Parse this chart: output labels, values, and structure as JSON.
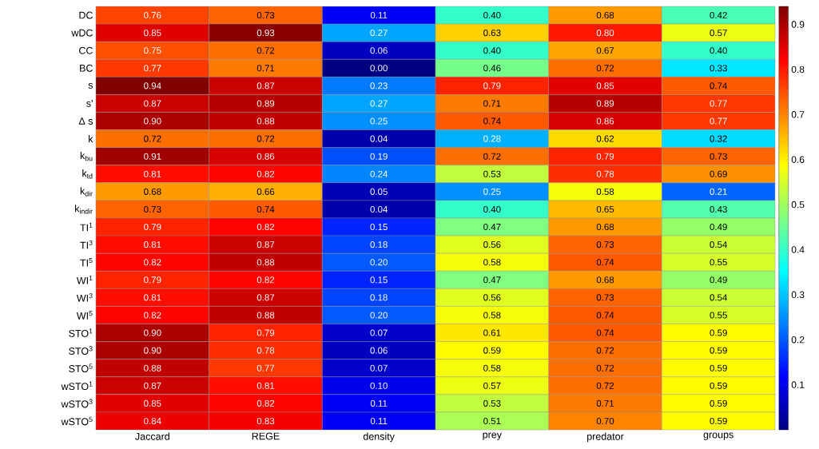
{
  "chart_data": {
    "type": "heatmap",
    "categories": [
      "Jaccard",
      "REGE",
      "density",
      "prey",
      "predator",
      "groups"
    ],
    "y_categories": [
      "DC",
      "wDC",
      "CC",
      "BC",
      "s",
      "s'",
      "Δ s",
      "k",
      "k$_{bu}$",
      "k$_{td}$",
      "k$_{dir}$",
      "k$_{indir}$",
      "TI$^{1}$",
      "TI$^{3}$",
      "TI$^{5}$",
      "WI$^{1}$",
      "WI$^{3}$",
      "WI$^{5}$",
      "STO$^{1}$",
      "STO$^{3}$",
      "STO$^{5}$",
      "wSTO$^{1}$",
      "wSTO$^{3}$",
      "wSTO$^{5}$"
    ],
    "cells": [
      [
        0.76,
        0.73,
        0.11,
        0.4,
        0.68,
        0.42
      ],
      [
        0.85,
        0.93,
        0.27,
        0.63,
        0.8,
        0.57
      ],
      [
        0.75,
        0.72,
        0.06,
        0.4,
        0.67,
        0.4
      ],
      [
        0.77,
        0.71,
        0.0,
        0.46,
        0.72,
        0.33
      ],
      [
        0.94,
        0.87,
        0.23,
        0.79,
        0.85,
        0.74
      ],
      [
        0.87,
        0.89,
        0.27,
        0.71,
        0.89,
        0.77
      ],
      [
        0.9,
        0.88,
        0.25,
        0.74,
        0.86,
        0.77
      ],
      [
        0.72,
        0.72,
        0.04,
        0.28,
        0.62,
        0.32
      ],
      [
        0.91,
        0.86,
        0.19,
        0.72,
        0.79,
        0.73
      ],
      [
        0.81,
        0.82,
        0.24,
        0.53,
        0.78,
        0.69
      ],
      [
        0.68,
        0.66,
        0.05,
        0.25,
        0.58,
        0.21
      ],
      [
        0.73,
        0.74,
        0.04,
        0.4,
        0.65,
        0.43
      ],
      [
        0.79,
        0.82,
        0.15,
        0.47,
        0.68,
        0.49
      ],
      [
        0.81,
        0.87,
        0.18,
        0.56,
        0.73,
        0.54
      ],
      [
        0.82,
        0.88,
        0.2,
        0.58,
        0.74,
        0.55
      ],
      [
        0.79,
        0.82,
        0.15,
        0.47,
        0.68,
        0.49
      ],
      [
        0.81,
        0.87,
        0.18,
        0.56,
        0.73,
        0.54
      ],
      [
        0.82,
        0.88,
        0.2,
        0.58,
        0.74,
        0.55
      ],
      [
        0.9,
        0.79,
        0.07,
        0.61,
        0.74,
        0.59
      ],
      [
        0.9,
        0.78,
        0.06,
        0.59,
        0.72,
        0.59
      ],
      [
        0.88,
        0.77,
        0.07,
        0.58,
        0.72,
        0.59
      ],
      [
        0.87,
        0.81,
        0.1,
        0.57,
        0.72,
        0.59
      ],
      [
        0.85,
        0.82,
        0.11,
        0.53,
        0.71,
        0.59
      ],
      [
        0.84,
        0.83,
        0.11,
        0.51,
        0.7,
        0.59
      ]
    ],
    "clim": [
      0,
      0.94
    ],
    "cticks": [
      0.1,
      0.2,
      0.3,
      0.4,
      0.5,
      0.6,
      0.7,
      0.8,
      0.9
    ],
    "cell_labels": [
      [
        "0.76",
        "0.73",
        "0.11",
        "0.40",
        "0.68",
        "0.42"
      ],
      [
        "0.85",
        "0.93",
        "0.27",
        "0.63",
        "0.80",
        "0.57"
      ],
      [
        "0.75",
        "0.72",
        "0.06",
        "0.40",
        "0.67",
        "0.40"
      ],
      [
        "0.77",
        "0.71",
        "0.00",
        "0.46",
        "0.72",
        "0.33"
      ],
      [
        "0.94",
        "0.87",
        "0.23",
        "0.79",
        "0.85",
        "0.74"
      ],
      [
        "0.87",
        "0.89",
        "0.27",
        "0.71",
        "0.89",
        "0.77"
      ],
      [
        "0.90",
        "0.88",
        "0.25",
        "0.74",
        "0.86",
        "0.77"
      ],
      [
        "0.72",
        "0.72",
        "0.04",
        "0.28",
        "0.62",
        "0.32"
      ],
      [
        "0.91",
        "0.86",
        "0.19",
        "0.72",
        "0.79",
        "0.73"
      ],
      [
        "0.81",
        "0.82",
        "0.24",
        "0.53",
        "0.78",
        "0.69"
      ],
      [
        "0.68",
        "0.66",
        "0.05",
        "0.25",
        "0.58",
        "0.21"
      ],
      [
        "0.73",
        "0.74",
        "0.04",
        "0.40",
        "0.65",
        "0.43"
      ],
      [
        "0.79",
        "0.82",
        "0.15",
        "0.47",
        "0.68",
        "0.49"
      ],
      [
        "0.81",
        "0.87",
        "0.18",
        "0.56",
        "0.73",
        "0.54"
      ],
      [
        "0.82",
        "0.88",
        "0.20",
        "0.58",
        "0.74",
        "0.55"
      ],
      [
        "0.79",
        "0.82",
        "0.15",
        "0.47",
        "0.68",
        "0.49"
      ],
      [
        "0.81",
        "0.87",
        "0.18",
        "0.56",
        "0.73",
        "0.54"
      ],
      [
        "0.82",
        "0.88",
        "0.20",
        "0.58",
        "0.74",
        "0.55"
      ],
      [
        "0.90",
        "0.79",
        "0.07",
        "0.61",
        "0.74",
        "0.59"
      ],
      [
        "0.90",
        "0.78",
        "0.06",
        "0.59",
        "0.72",
        "0.59"
      ],
      [
        "0.88",
        "0.77",
        "0.07",
        "0.58",
        "0.72",
        "0.59"
      ],
      [
        "0.87",
        "0.81",
        "0.10",
        "0.57",
        "0.72",
        "0.59"
      ],
      [
        "0.85",
        "0.82",
        "0.11",
        "0.53",
        "0.71",
        "0.59"
      ],
      [
        "0.84",
        "0.83",
        "0.11",
        "0.51",
        "0.70",
        "0.59"
      ]
    ]
  }
}
